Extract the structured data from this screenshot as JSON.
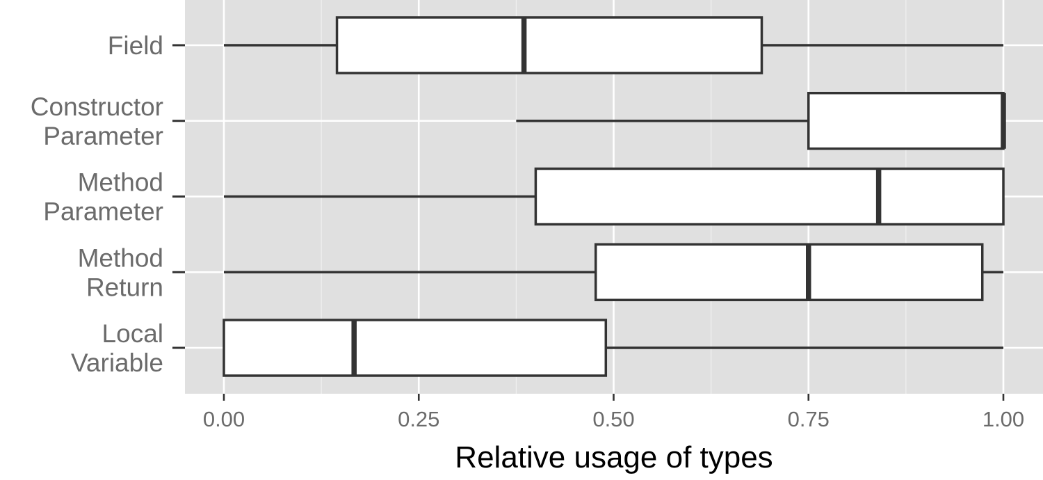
{
  "chart_data": {
    "type": "boxplot",
    "orientation": "horizontal",
    "xlabel": "Relative usage of types",
    "ylabel": "",
    "xlim": [
      -0.05,
      1.05
    ],
    "x_ticks": [
      0.0,
      0.25,
      0.5,
      0.75,
      1.0
    ],
    "x_tick_labels": [
      "0.00",
      "0.25",
      "0.50",
      "0.75",
      "1.00"
    ],
    "grid": true,
    "colors": {
      "panel": "#e0e0e0",
      "grid": "#ffffff",
      "box_fill": "#ffffff",
      "box_stroke": "#333333"
    },
    "categories": [
      {
        "label": [
          "Field"
        ],
        "min": 0.0,
        "q1": 0.145,
        "median": 0.385,
        "q3": 0.69,
        "max": 1.0
      },
      {
        "label": [
          "Constructor",
          "Parameter"
        ],
        "min": 0.375,
        "q1": 0.75,
        "median": 1.0,
        "q3": 1.0,
        "max": 1.0
      },
      {
        "label": [
          "Method",
          "Parameter"
        ],
        "min": 0.0,
        "q1": 0.4,
        "median": 0.84,
        "q3": 1.0,
        "max": 1.0
      },
      {
        "label": [
          "Method",
          "Return"
        ],
        "min": 0.0,
        "q1": 0.477,
        "median": 0.75,
        "q3": 0.973,
        "max": 1.0
      },
      {
        "label": [
          "Local",
          "Variable"
        ],
        "min": 0.0,
        "q1": 0.0,
        "median": 0.167,
        "q3": 0.49,
        "max": 1.0
      }
    ]
  }
}
